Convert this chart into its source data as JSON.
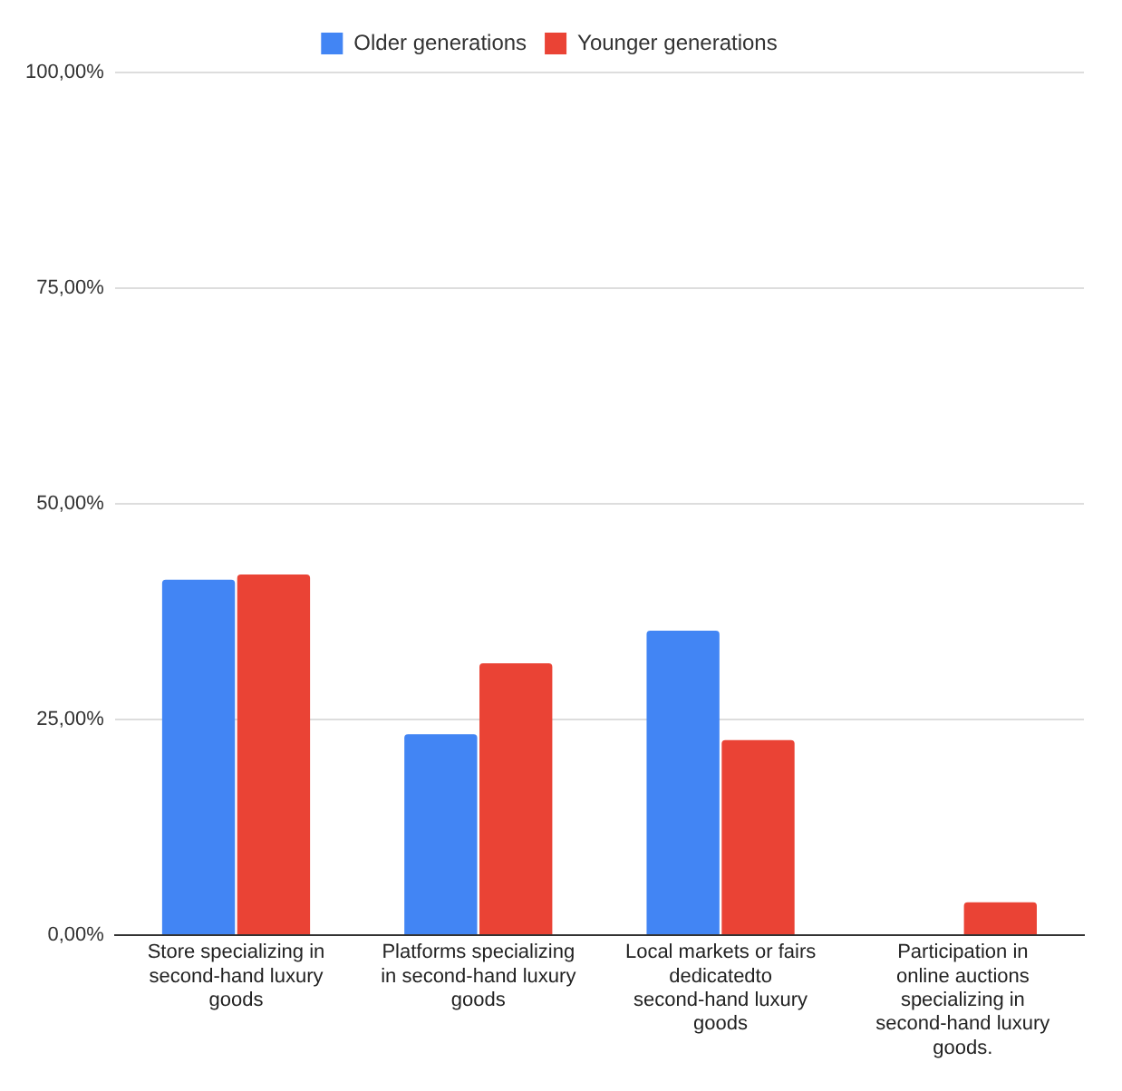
{
  "chart_data": {
    "type": "bar",
    "categories": [
      "Store specializing in second-hand luxury goods",
      "Platforms specializing in second-hand luxury goods",
      "Local markets or fairs dedicatedto second-hand luxury goods",
      "Participation in online auctions specializing in second-hand luxury goods."
    ],
    "series": [
      {
        "name": "Older generations",
        "color": "#4285f4",
        "values": [
          41.2,
          23.3,
          35.3,
          0
        ]
      },
      {
        "name": "Younger generations",
        "color": "#ea4335",
        "values": [
          41.8,
          31.5,
          22.6,
          3.8
        ]
      }
    ],
    "ylim": [
      0,
      100
    ],
    "yticks": [
      {
        "value": 0,
        "label": "0,00%"
      },
      {
        "value": 25,
        "label": "25,00%"
      },
      {
        "value": 50,
        "label": "50,00%"
      },
      {
        "value": 75,
        "label": "75,00%"
      },
      {
        "value": 100,
        "label": "100,00%"
      }
    ],
    "grid": "y",
    "legend": "top"
  }
}
